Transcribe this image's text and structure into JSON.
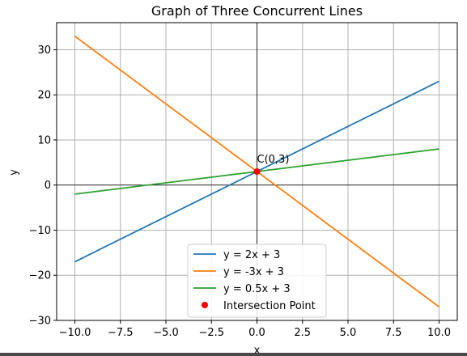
{
  "chart_data": {
    "type": "line",
    "title": "Graph of Three Concurrent Lines",
    "xlabel": "x",
    "ylabel": "y",
    "xlim": [
      -11,
      11
    ],
    "ylim": [
      -30,
      36
    ],
    "xticks": [
      -10.0,
      -7.5,
      -5.0,
      -2.5,
      0.0,
      2.5,
      5.0,
      7.5,
      10.0
    ],
    "xtick_labels": [
      "−10.0",
      "−7.5",
      "−5.0",
      "−2.5",
      "0.0",
      "2.5",
      "5.0",
      "7.5",
      "10.0"
    ],
    "yticks": [
      -30,
      -20,
      -10,
      0,
      10,
      20,
      30
    ],
    "ytick_labels": [
      "−30",
      "−20",
      "−10",
      "0",
      "10",
      "20",
      "30"
    ],
    "grid": true,
    "legend_position": "bottom-center",
    "series": [
      {
        "name": "y = 2x + 3",
        "color": "#1f77b4",
        "x": [
          -10,
          10
        ],
        "y": [
          -17,
          23
        ]
      },
      {
        "name": "y = -3x + 3",
        "color": "#ff7f0e",
        "x": [
          -10,
          10
        ],
        "y": [
          33,
          -27
        ]
      },
      {
        "name": "y = 0.5x + 3",
        "color": "#2ca02c",
        "x": [
          -10,
          10
        ],
        "y": [
          -2,
          8
        ]
      }
    ],
    "points": [
      {
        "name": "Intersection Point",
        "color": "#ff0000",
        "x": 0,
        "y": 3,
        "label": "C(0,3)"
      }
    ]
  }
}
